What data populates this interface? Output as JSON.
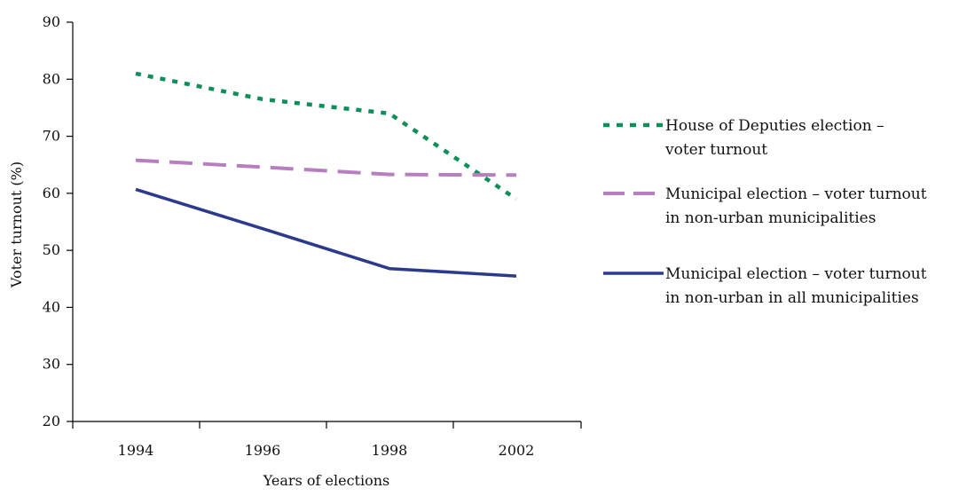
{
  "chart_data": {
    "type": "line",
    "title": "",
    "xlabel": "Years of elections",
    "ylabel": "Voter turnout (%)",
    "categories": [
      "1994",
      "1996",
      "1998",
      "2002"
    ],
    "ylim": [
      20,
      90
    ],
    "yticks": [
      "20",
      "30",
      "40",
      "50",
      "60",
      "70",
      "80",
      "90"
    ],
    "grid": false,
    "legend_position": "right",
    "series": [
      {
        "name": "House of Deputies election – voter turnout",
        "legend_lines": [
          "House of Deputies election –",
          "voter turnout"
        ],
        "x": [
          "1994",
          "1996",
          "1998",
          "2002"
        ],
        "values": [
          81,
          76.5,
          74,
          59
        ],
        "color": "#0e8f5a",
        "style": "dotted"
      },
      {
        "name": "Municipal election – voter turnout in non-urban municipalities",
        "legend_lines": [
          "Municipal election – voter turnout",
          "in non-urban municipalities"
        ],
        "x": [
          "1994",
          "1996",
          "1998",
          "2002"
        ],
        "values": [
          65.8,
          64.6,
          63.3,
          63.2
        ],
        "color": "#b77ec0",
        "style": "dashed"
      },
      {
        "name": "Municipal election – voter turnout in non-urban in all municipalities",
        "legend_lines": [
          "Municipal election – voter turnout",
          "in non-urban in all municipalities"
        ],
        "x": [
          "1994",
          "1996",
          "1998",
          "2002"
        ],
        "values": [
          60.7,
          53.8,
          46.8,
          45.5
        ],
        "color": "#2b3a8c",
        "style": "solid"
      }
    ]
  }
}
